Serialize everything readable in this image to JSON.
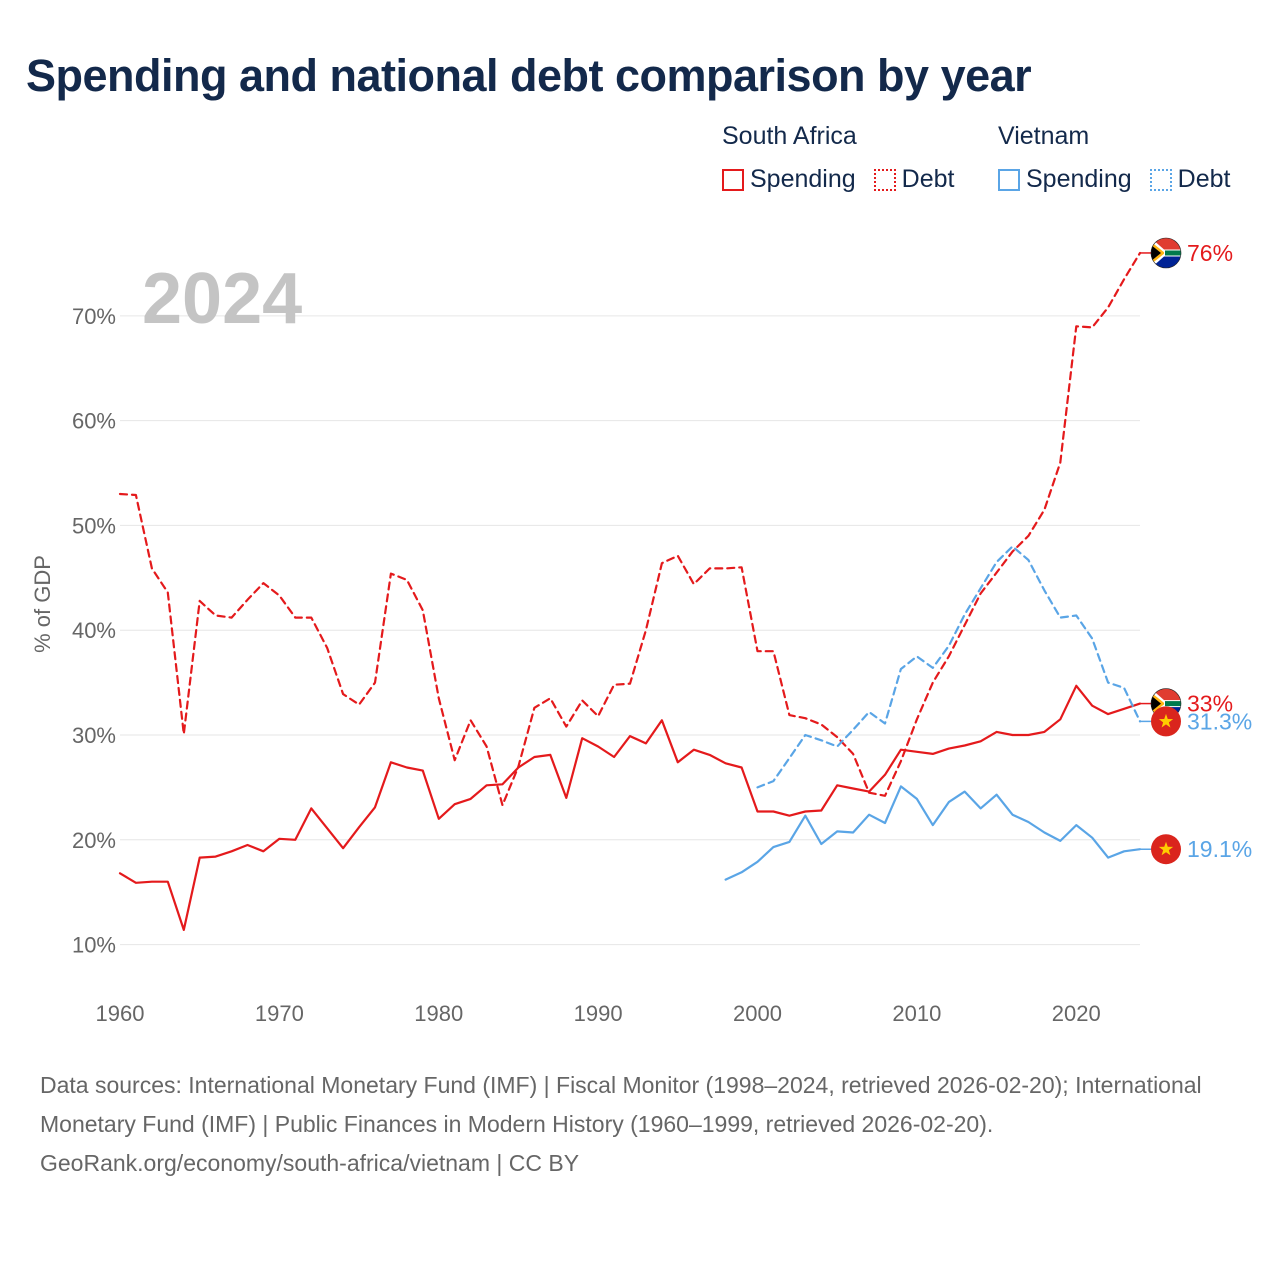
{
  "title": "Spending and national debt comparison by year",
  "legend": {
    "groups": [
      {
        "name": "South Africa",
        "items": [
          {
            "label": "Spending",
            "style": "solid"
          },
          {
            "label": "Debt",
            "style": "dotted"
          }
        ],
        "color": "#e41a1c"
      },
      {
        "name": "Vietnam",
        "items": [
          {
            "label": "Spending",
            "style": "solid"
          },
          {
            "label": "Debt",
            "style": "dotted"
          }
        ],
        "color": "#5aa5e6"
      }
    ]
  },
  "colors": {
    "south_africa": "#e41a1c",
    "vietnam": "#5aa5e6",
    "year_label": "#c4c4c4",
    "axis_text": "#666666",
    "grid": "#e6e6e6"
  },
  "icons": {
    "south_africa_flag": "south-africa-flag-icon",
    "vietnam_flag": "vietnam-flag-icon"
  },
  "chart_data": {
    "type": "line",
    "year_label": "2024",
    "ylabel": "% of GDP",
    "xlim": [
      1960,
      2024
    ],
    "ylim": [
      5,
      78
    ],
    "x_ticks": [
      1960,
      1970,
      1980,
      1990,
      2000,
      2010,
      2020
    ],
    "y_ticks": [
      10,
      20,
      30,
      40,
      50,
      60,
      70
    ],
    "y_tick_labels": [
      "10%",
      "20%",
      "30%",
      "40%",
      "50%",
      "60%",
      "70%"
    ],
    "series": [
      {
        "name": "South Africa Debt",
        "country": "South Africa",
        "metric": "Debt",
        "style": "dashed",
        "color": "#e41a1c",
        "x": [
          1960,
          1961,
          1962,
          1963,
          1964,
          1965,
          1966,
          1967,
          1968,
          1969,
          1970,
          1971,
          1972,
          1973,
          1974,
          1975,
          1976,
          1977,
          1978,
          1979,
          1980,
          1981,
          1982,
          1983,
          1984,
          1985,
          1986,
          1987,
          1988,
          1989,
          1990,
          1991,
          1992,
          1993,
          1994,
          1995,
          1996,
          1997,
          1998,
          1999,
          2000,
          2001,
          2002,
          2003,
          2004,
          2005,
          2006,
          2007,
          2008,
          2009,
          2010,
          2011,
          2012,
          2013,
          2014,
          2015,
          2016,
          2017,
          2018,
          2019,
          2020,
          2021,
          2022,
          2023,
          2024
        ],
        "values": [
          53,
          52.9,
          45.9,
          43.6,
          30.1,
          42.8,
          41.4,
          41.2,
          42.9,
          44.5,
          43.3,
          41.2,
          41.2,
          38.3,
          33.9,
          32.9,
          35,
          45.4,
          44.8,
          41.9,
          33.5,
          27.6,
          31.4,
          28.9,
          23.3,
          27,
          32.6,
          33.5,
          30.8,
          33.3,
          31.8,
          34.8,
          34.9,
          40,
          46.4,
          47.1,
          44.4,
          45.9,
          45.9,
          46,
          38,
          38,
          31.9,
          31.6,
          31,
          29.8,
          28.2,
          24.5,
          24.2,
          27.5,
          31.5,
          35,
          37.5,
          40.5,
          43.5,
          45.5,
          47.5,
          49,
          51.5,
          56,
          69,
          68.9,
          70.8,
          73.5,
          76
        ]
      },
      {
        "name": "South Africa Spending",
        "country": "South Africa",
        "metric": "Spending",
        "style": "solid",
        "color": "#e41a1c",
        "x": [
          1960,
          1961,
          1962,
          1963,
          1964,
          1965,
          1966,
          1967,
          1968,
          1969,
          1970,
          1971,
          1972,
          1973,
          1974,
          1975,
          1976,
          1977,
          1978,
          1979,
          1980,
          1981,
          1982,
          1983,
          1984,
          1985,
          1986,
          1987,
          1988,
          1989,
          1990,
          1991,
          1992,
          1993,
          1994,
          1995,
          1996,
          1997,
          1998,
          1999,
          2000,
          2001,
          2002,
          2003,
          2004,
          2005,
          2006,
          2007,
          2008,
          2009,
          2010,
          2011,
          2012,
          2013,
          2014,
          2015,
          2016,
          2017,
          2018,
          2019,
          2020,
          2021,
          2022,
          2023,
          2024
        ],
        "values": [
          16.8,
          15.9,
          16,
          16,
          11.4,
          18.3,
          18.4,
          18.9,
          19.5,
          18.9,
          20.1,
          20,
          23,
          21.1,
          19.2,
          21.2,
          23.1,
          27.4,
          26.9,
          26.6,
          22,
          23.4,
          23.9,
          25.2,
          25.3,
          26.9,
          27.9,
          28.1,
          24,
          29.7,
          28.9,
          27.9,
          29.9,
          29.2,
          31.4,
          27.4,
          28.6,
          28.1,
          27.3,
          26.9,
          22.7,
          22.7,
          22.3,
          22.7,
          22.8,
          25.2,
          24.9,
          24.6,
          26.2,
          28.6,
          28.4,
          28.2,
          28.7,
          29,
          29.4,
          30.3,
          30,
          30,
          30.3,
          31.5,
          34.7,
          32.8,
          32,
          32.5,
          33
        ]
      },
      {
        "name": "Vietnam Debt",
        "country": "Vietnam",
        "metric": "Debt",
        "style": "dashed",
        "color": "#5aa5e6",
        "x": [
          2000,
          2001,
          2002,
          2003,
          2004,
          2005,
          2006,
          2007,
          2008,
          2009,
          2010,
          2011,
          2012,
          2013,
          2014,
          2015,
          2016,
          2017,
          2018,
          2019,
          2020,
          2021,
          2022,
          2023,
          2024
        ],
        "values": [
          25,
          25.6,
          27.8,
          30,
          29.5,
          28.9,
          30.5,
          32.2,
          31.1,
          36.3,
          37.5,
          36.4,
          38.5,
          41.5,
          44,
          46.5,
          48,
          46.7,
          43.8,
          41.2,
          41.4,
          39.2,
          35,
          34.5,
          31.3
        ]
      },
      {
        "name": "Vietnam Spending",
        "country": "Vietnam",
        "metric": "Spending",
        "style": "solid",
        "color": "#5aa5e6",
        "x": [
          1998,
          1999,
          2000,
          2001,
          2002,
          2003,
          2004,
          2005,
          2006,
          2007,
          2008,
          2009,
          2010,
          2011,
          2012,
          2013,
          2014,
          2015,
          2016,
          2017,
          2018,
          2019,
          2020,
          2021,
          2022,
          2023,
          2024
        ],
        "values": [
          16.2,
          16.9,
          17.9,
          19.3,
          19.8,
          22.3,
          19.6,
          20.8,
          20.7,
          22.4,
          21.6,
          25.1,
          23.9,
          21.4,
          23.6,
          24.6,
          23,
          24.3,
          22.4,
          21.7,
          20.7,
          19.9,
          21.4,
          20.2,
          18.3,
          18.9,
          19.1
        ]
      }
    ],
    "end_labels": [
      {
        "country": "South Africa",
        "metric": "Debt",
        "text": "76%",
        "value": 76,
        "color": "#e41a1c",
        "flag": "south-africa-flag-icon"
      },
      {
        "country": "South Africa",
        "metric": "Spending",
        "text": "33%",
        "value": 33,
        "color": "#e41a1c",
        "flag": "south-africa-flag-icon"
      },
      {
        "country": "Vietnam",
        "metric": "Debt",
        "text": "31.3%",
        "value": 31.3,
        "color": "#5aa5e6",
        "flag": "vietnam-flag-icon"
      },
      {
        "country": "Vietnam",
        "metric": "Spending",
        "text": "19.1%",
        "value": 19.1,
        "color": "#5aa5e6",
        "flag": "vietnam-flag-icon"
      }
    ]
  },
  "footer": {
    "sources": "Data sources: International Monetary Fund (IMF) | Fiscal Monitor (1998–2024, retrieved 2026-02-20); International Monetary Fund (IMF) | Public Finances in Modern History (1960–1999, retrieved 2026-02-20).",
    "credit": "GeoRank.org/economy/south-africa/vietnam | CC BY"
  }
}
